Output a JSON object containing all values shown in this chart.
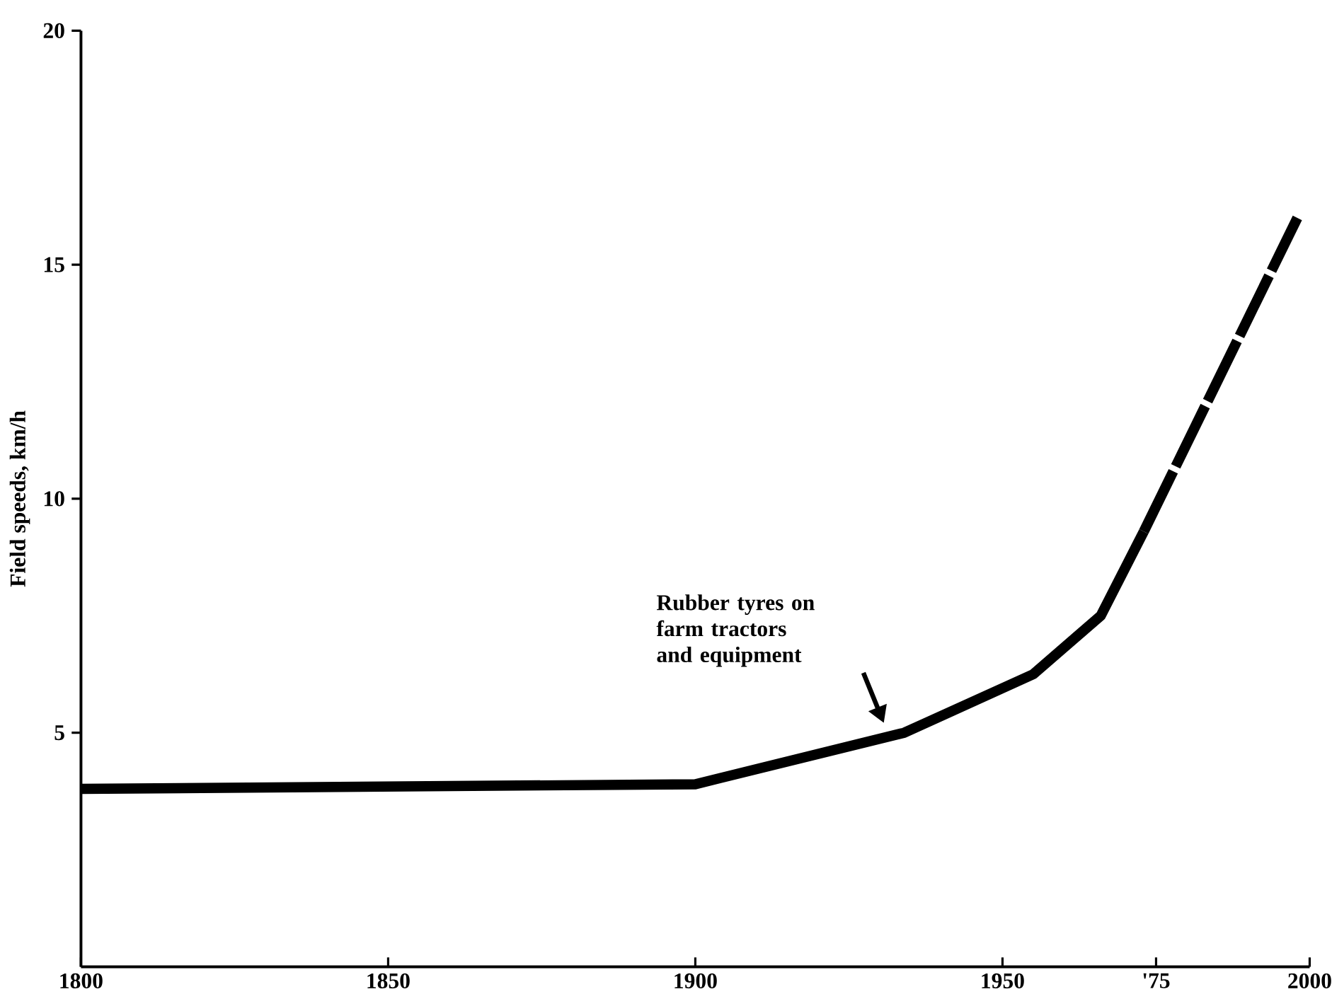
{
  "chart_data": {
    "type": "line",
    "ylabel": "Field speeds, km/h",
    "xlim": [
      1800,
      2000
    ],
    "ylim": [
      0,
      20
    ],
    "xticks": [
      1800,
      1850,
      1900,
      1950,
      {
        "value": 1975,
        "label": "'75"
      },
      2000
    ],
    "yticks": [
      5,
      10,
      15,
      20
    ],
    "series": [
      {
        "color": "#000000",
        "line_style": "solid",
        "x": [
          1800,
          1900,
          1934,
          1955,
          1966,
          1973
        ],
        "values": [
          3.8,
          3.9,
          5.0,
          6.25,
          7.5,
          9.3
        ]
      },
      {
        "color": "#000000",
        "line_style": "dashed",
        "x": [
          1973,
          1998
        ],
        "values": [
          9.3,
          16.0
        ]
      }
    ],
    "annotations": [
      "Rubber tyres on farm tractors and equipment"
    ],
    "grid": false,
    "marker": "none"
  }
}
